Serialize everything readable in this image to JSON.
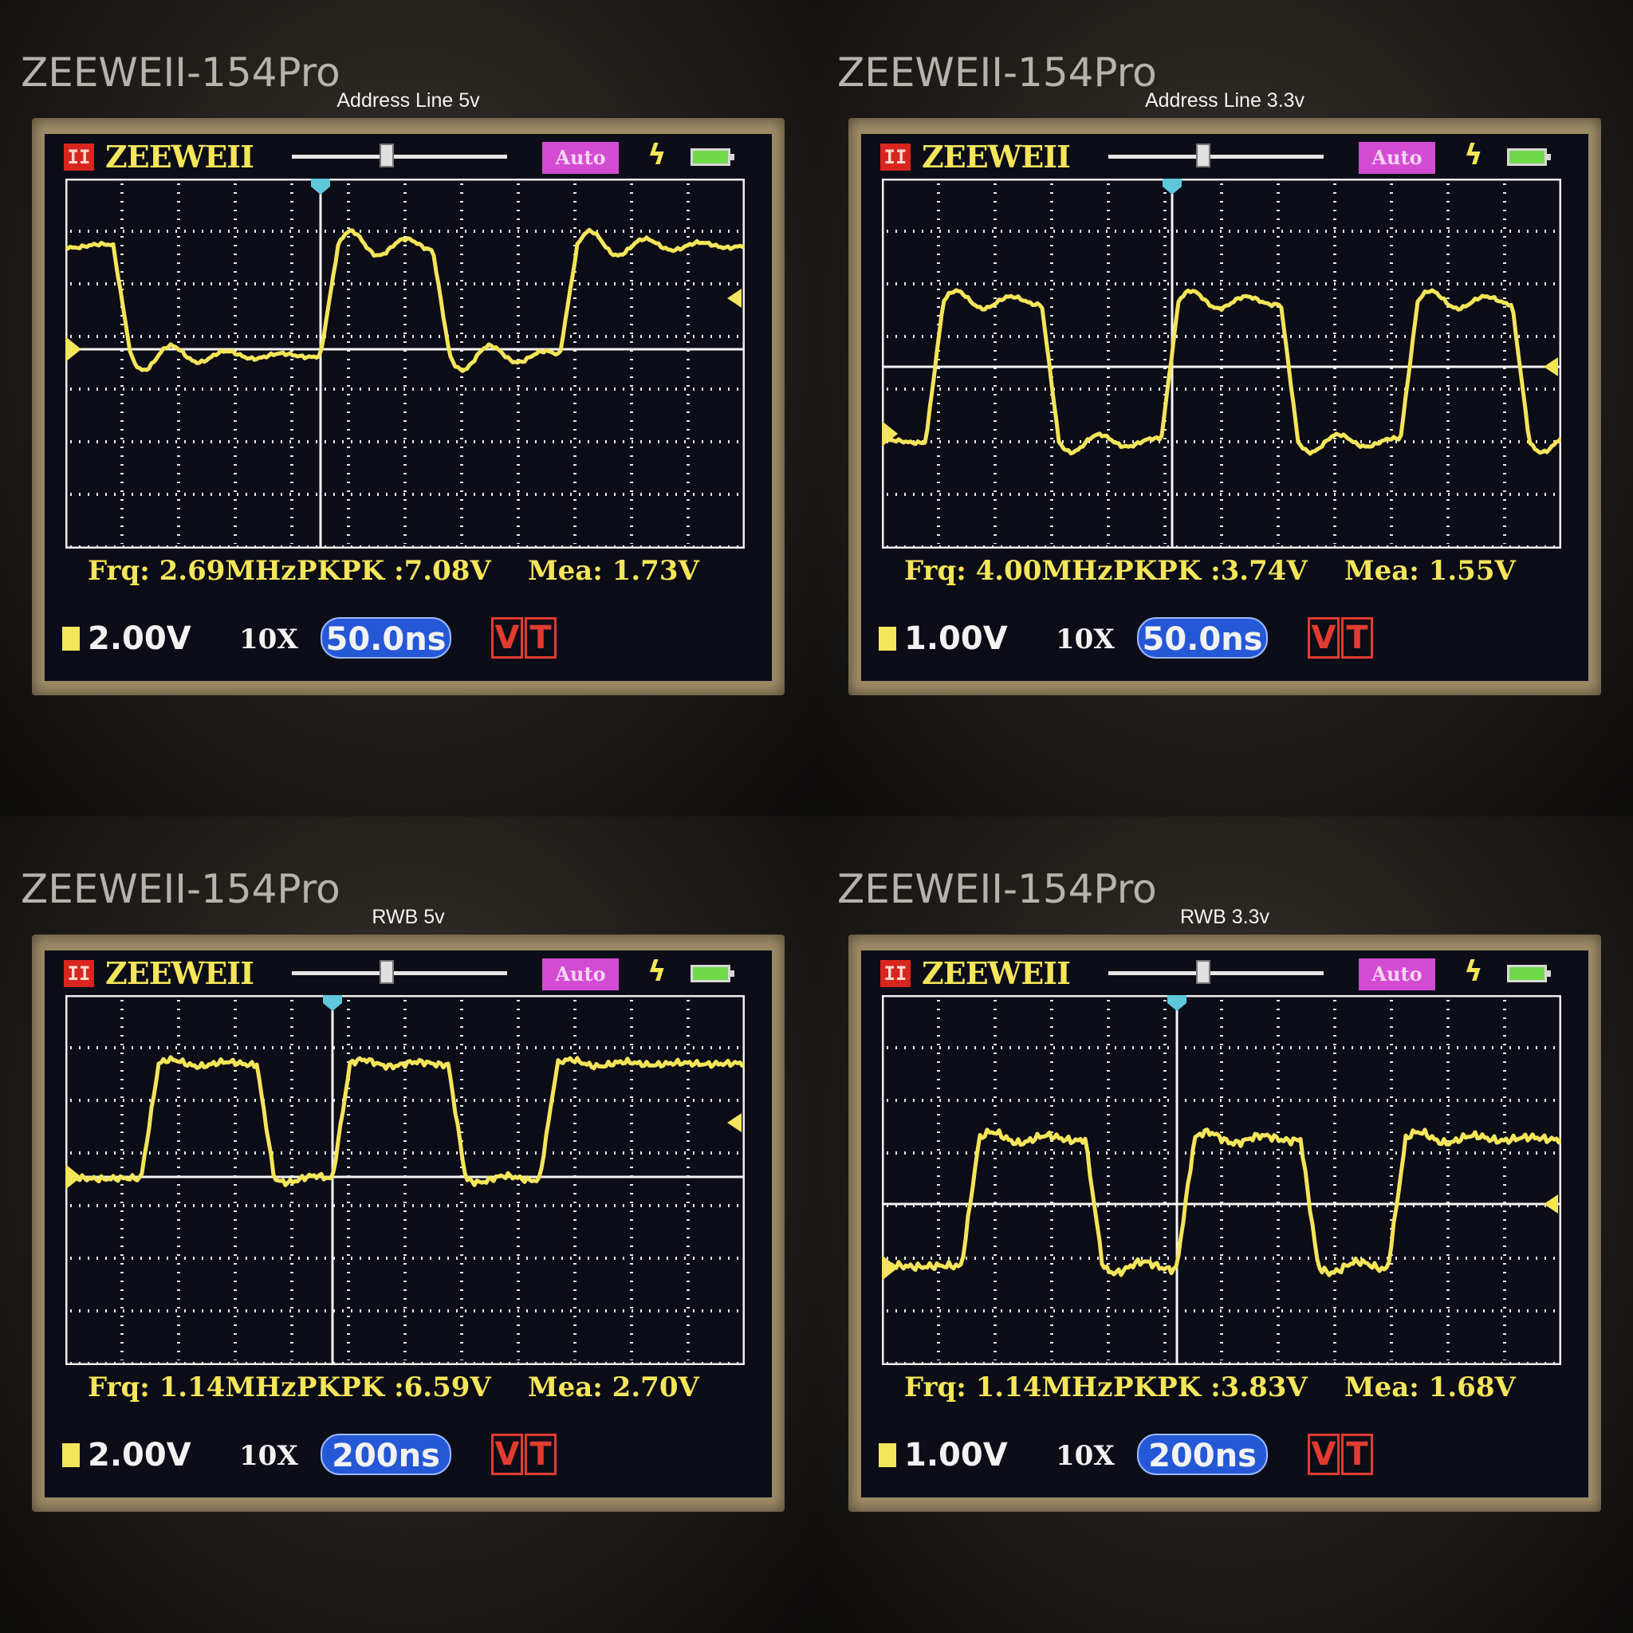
{
  "panels": [
    {
      "brand": "ZEEWEII-154Pro",
      "caption": "Address Line 5v",
      "run_label": "II",
      "logo": "ZEEWEII",
      "mode": "Auto",
      "trigger_icon": "lightning-bolt-icon",
      "battery_icon": "battery-icon",
      "frequency": "Frq: 2.69MHz",
      "pkpk": "PKPK :7.08V",
      "mean": "Mea: 1.73V",
      "volts_div": "2.00V",
      "probe": "10X",
      "timebase": "50.0ns",
      "vt_v": "V",
      "vt_t": "T"
    },
    {
      "brand": "ZEEWEII-154Pro",
      "caption": "Address Line 3.3v",
      "run_label": "II",
      "logo": "ZEEWEII",
      "mode": "Auto",
      "trigger_icon": "lightning-bolt-icon",
      "battery_icon": "battery-icon",
      "frequency": "Frq: 4.00MHz",
      "pkpk": "PKPK :3.74V",
      "mean": "Mea: 1.55V",
      "volts_div": "1.00V",
      "probe": "10X",
      "timebase": "50.0ns",
      "vt_v": "V",
      "vt_t": "T"
    },
    {
      "brand": "ZEEWEII-154Pro",
      "caption": "RWB 5v",
      "run_label": "II",
      "logo": "ZEEWEII",
      "mode": "Auto",
      "trigger_icon": "lightning-bolt-icon",
      "battery_icon": "battery-icon",
      "frequency": "Frq: 1.14MHz",
      "pkpk": "PKPK :6.59V",
      "mean": "Mea: 2.70V",
      "volts_div": "2.00V",
      "probe": "10X",
      "timebase": "200ns",
      "vt_v": "V",
      "vt_t": "T"
    },
    {
      "brand": "ZEEWEII-154Pro",
      "caption": "RWB 3.3v",
      "run_label": "II",
      "logo": "ZEEWEII",
      "mode": "Auto",
      "trigger_icon": "lightning-bolt-icon",
      "battery_icon": "battery-icon",
      "frequency": "Frq: 1.14MHz",
      "pkpk": "PKPK :3.83V",
      "mean": "Mea: 1.68V",
      "volts_div": "1.00V",
      "probe": "10X",
      "timebase": "200ns",
      "vt_v": "V",
      "vt_t": "T"
    }
  ],
  "colors": {
    "trace": "#f4e55a",
    "grid_dots": "#e8e8e8",
    "bezel": "#9f8c68",
    "timebase_badge": "#2558d6",
    "mode_badge": "#d34bd3",
    "vt_badge": "#e23b30"
  }
}
